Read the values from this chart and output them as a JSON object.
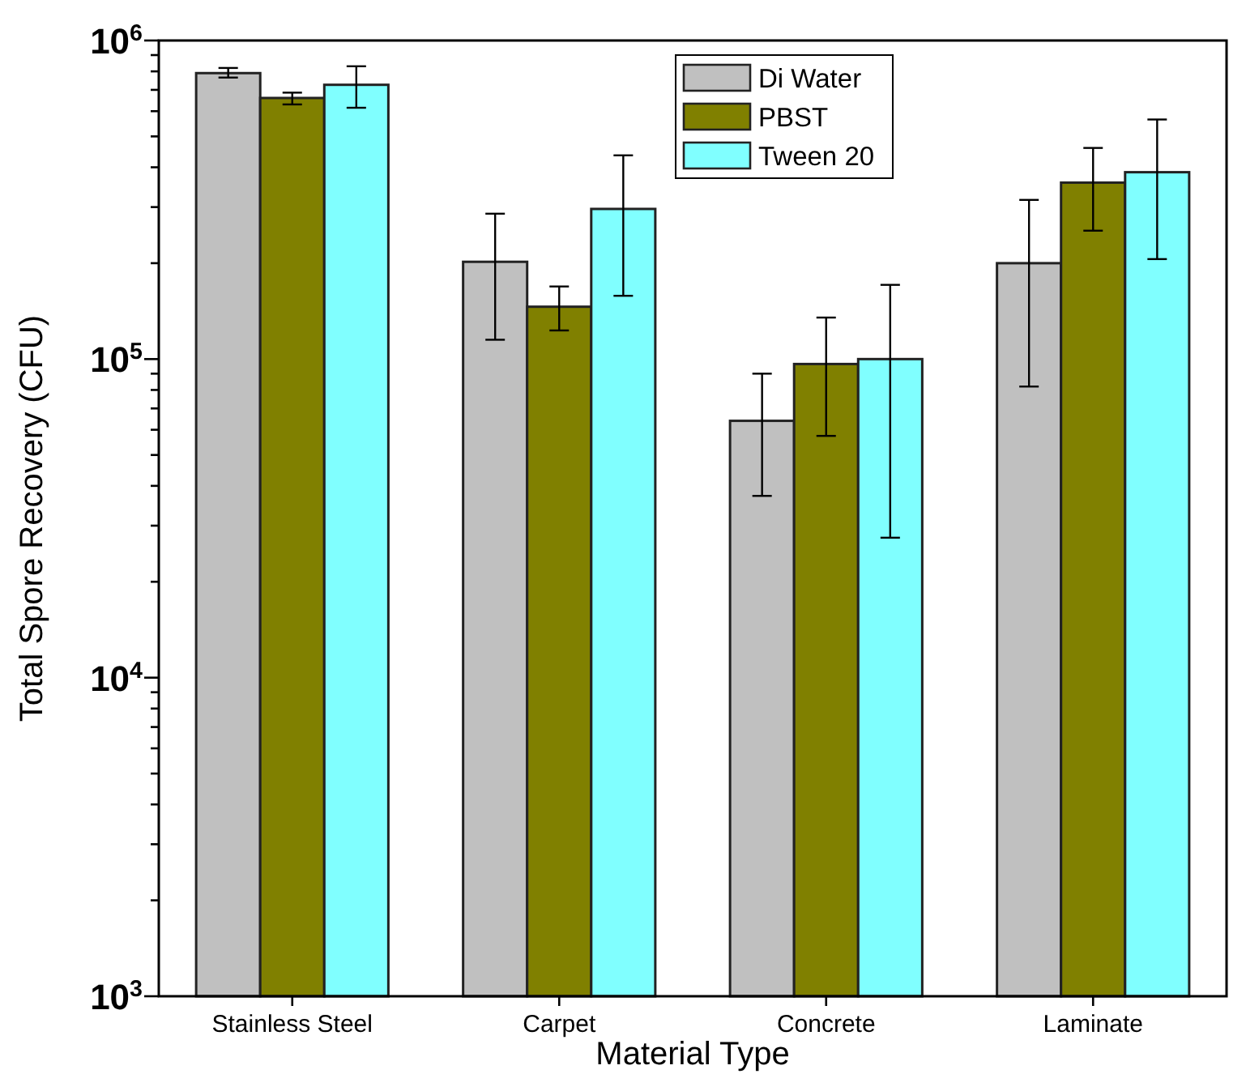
{
  "chart_data": {
    "type": "bar",
    "xlabel": "Material Type",
    "ylabel": "Total Spore Recovery (CFU)",
    "categories": [
      "Stainless Steel",
      "Carpet",
      "Concrete",
      "Laminate"
    ],
    "series": [
      {
        "name": "Di Water",
        "color": "#c0c0c0",
        "values": [
          790000,
          202000,
          64000,
          200000
        ],
        "errors": [
          [
            765000,
            820000
          ],
          [
            115000,
            286000
          ],
          [
            37200,
            90000
          ],
          [
            82000,
            316000
          ]
        ]
      },
      {
        "name": "PBST",
        "color": "#808000",
        "values": [
          660000,
          146000,
          96500,
          358000
        ],
        "errors": [
          [
            630000,
            686000
          ],
          [
            123000,
            169000
          ],
          [
            57400,
            135000
          ],
          [
            253000,
            460000
          ]
        ]
      },
      {
        "name": "Tween 20",
        "color": "#80ffff",
        "values": [
          726000,
          296000,
          100000,
          386000
        ],
        "errors": [
          [
            615000,
            830000
          ],
          [
            158000,
            436000
          ],
          [
            27500,
            171000
          ],
          [
            206000,
            565000
          ]
        ]
      }
    ],
    "log": true,
    "ylim": [
      1000,
      1000000
    ],
    "yticks": [
      {
        "value": 1000,
        "label": "10$^{3}$"
      },
      {
        "value": 2000,
        "label": null
      },
      {
        "value": 3000,
        "label": null
      },
      {
        "value": 4000,
        "label": null
      },
      {
        "value": 5000,
        "label": null
      },
      {
        "value": 6000,
        "label": null
      },
      {
        "value": 7000,
        "label": null
      },
      {
        "value": 8000,
        "label": null
      },
      {
        "value": 9000,
        "label": null
      },
      {
        "value": 10000,
        "label": "10$^{4}$"
      },
      {
        "value": 20000,
        "label": null
      },
      {
        "value": 30000,
        "label": null
      },
      {
        "value": 40000,
        "label": null
      },
      {
        "value": 50000,
        "label": null
      },
      {
        "value": 60000,
        "label": null
      },
      {
        "value": 70000,
        "label": null
      },
      {
        "value": 80000,
        "label": null
      },
      {
        "value": 90000,
        "label": null
      },
      {
        "value": 100000,
        "label": "10$^{5}$"
      },
      {
        "value": 200000,
        "label": null
      },
      {
        "value": 300000,
        "label": null
      },
      {
        "value": 400000,
        "label": null
      },
      {
        "value": 500000,
        "label": null
      },
      {
        "value": 600000,
        "label": null
      },
      {
        "value": 700000,
        "label": null
      },
      {
        "value": 800000,
        "label": null
      },
      {
        "value": 900000,
        "label": null
      },
      {
        "value": 1000000,
        "label": "10$^{6}$"
      }
    ],
    "grid": false,
    "legend": "top right"
  }
}
